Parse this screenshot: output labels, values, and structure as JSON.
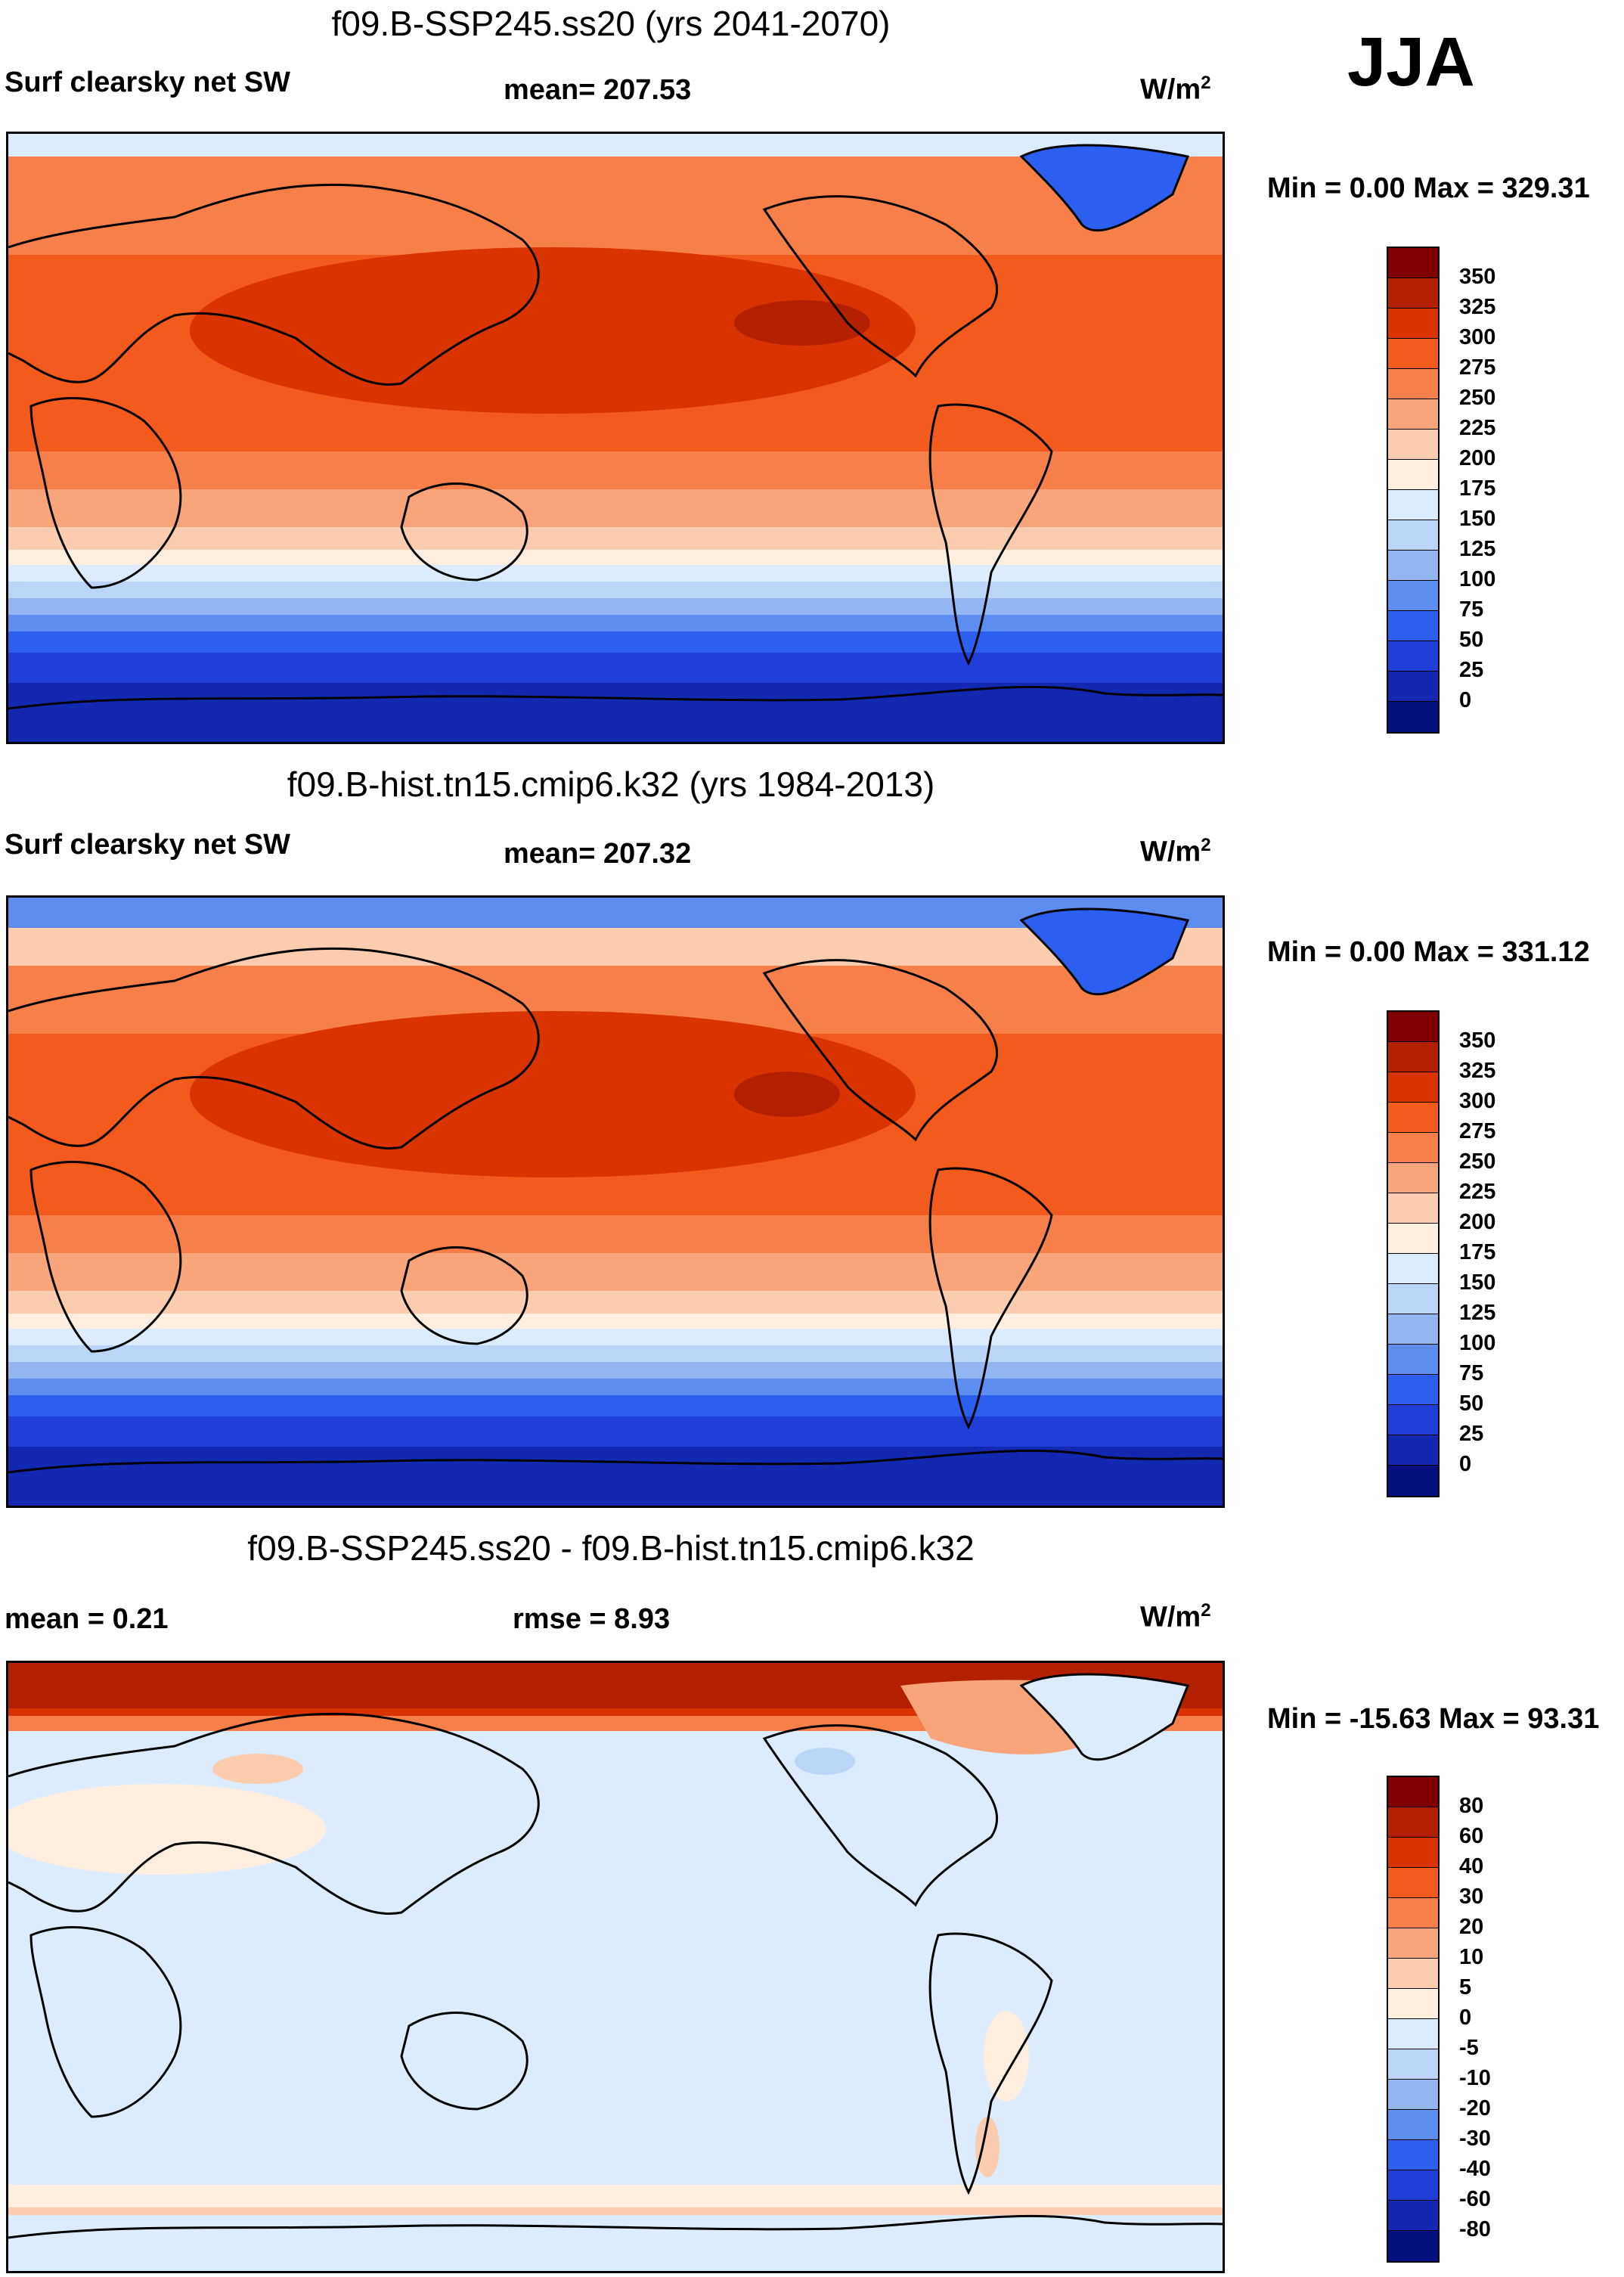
{
  "season": "JJA",
  "panels": [
    {
      "title": "f09.B-SSP245.ss20 (yrs 2041-2070)",
      "left_label": "Surf clearsky net SW",
      "center_label": "mean= 207.53",
      "units_base": "W/m",
      "units_sup": "2",
      "minmax": "Min =   0.00 Max = 329.31",
      "colorbar": {
        "colors": [
          "#7f0000",
          "#b22000",
          "#d93400",
          "#f25a1e",
          "#f7804a",
          "#f9a57c",
          "#fbccad",
          "#fdeee0",
          "#dcecfc",
          "#bad5f8",
          "#91b6f2",
          "#5e8df0",
          "#2c5ef0",
          "#1f3fd8",
          "#1228b0",
          "#060f80"
        ],
        "labels": [
          "350",
          "325",
          "300",
          "275",
          "250",
          "225",
          "200",
          "175",
          "150",
          "125",
          "100",
          "75",
          "50",
          "25",
          "0"
        ]
      }
    },
    {
      "title": "f09.B-hist.tn15.cmip6.k32 (yrs 1984-2013)",
      "left_label": "Surf clearsky net SW",
      "center_label": "mean= 207.32",
      "units_base": "W/m",
      "units_sup": "2",
      "minmax": "Min =   0.00 Max = 331.12",
      "colorbar": {
        "colors": [
          "#7f0000",
          "#b22000",
          "#d93400",
          "#f25a1e",
          "#f7804a",
          "#f9a57c",
          "#fbccad",
          "#fdeee0",
          "#dcecfc",
          "#bad5f8",
          "#91b6f2",
          "#5e8df0",
          "#2c5ef0",
          "#1f3fd8",
          "#1228b0",
          "#060f80"
        ],
        "labels": [
          "350",
          "325",
          "300",
          "275",
          "250",
          "225",
          "200",
          "175",
          "150",
          "125",
          "100",
          "75",
          "50",
          "25",
          "0"
        ]
      }
    },
    {
      "title": "f09.B-SSP245.ss20 - f09.B-hist.tn15.cmip6.k32",
      "left_label": "mean =   0.21",
      "center_label": "rmse =   8.93",
      "units_base": "W/m",
      "units_sup": "2",
      "minmax": "Min = -15.63 Max =  93.31",
      "colorbar": {
        "colors": [
          "#7f0000",
          "#b22000",
          "#d93400",
          "#f25a1e",
          "#f7804a",
          "#f9a57c",
          "#fbccad",
          "#fdeee0",
          "#dcecfc",
          "#bad5f8",
          "#91b6f2",
          "#5e8df0",
          "#2c5ef0",
          "#1f3fd8",
          "#1228b0",
          "#060f80"
        ],
        "labels": [
          "80",
          "60",
          "40",
          "30",
          "20",
          "10",
          "5",
          "0",
          "-5",
          "-10",
          "-20",
          "-30",
          "-40",
          "-60",
          "-80"
        ]
      }
    }
  ]
}
